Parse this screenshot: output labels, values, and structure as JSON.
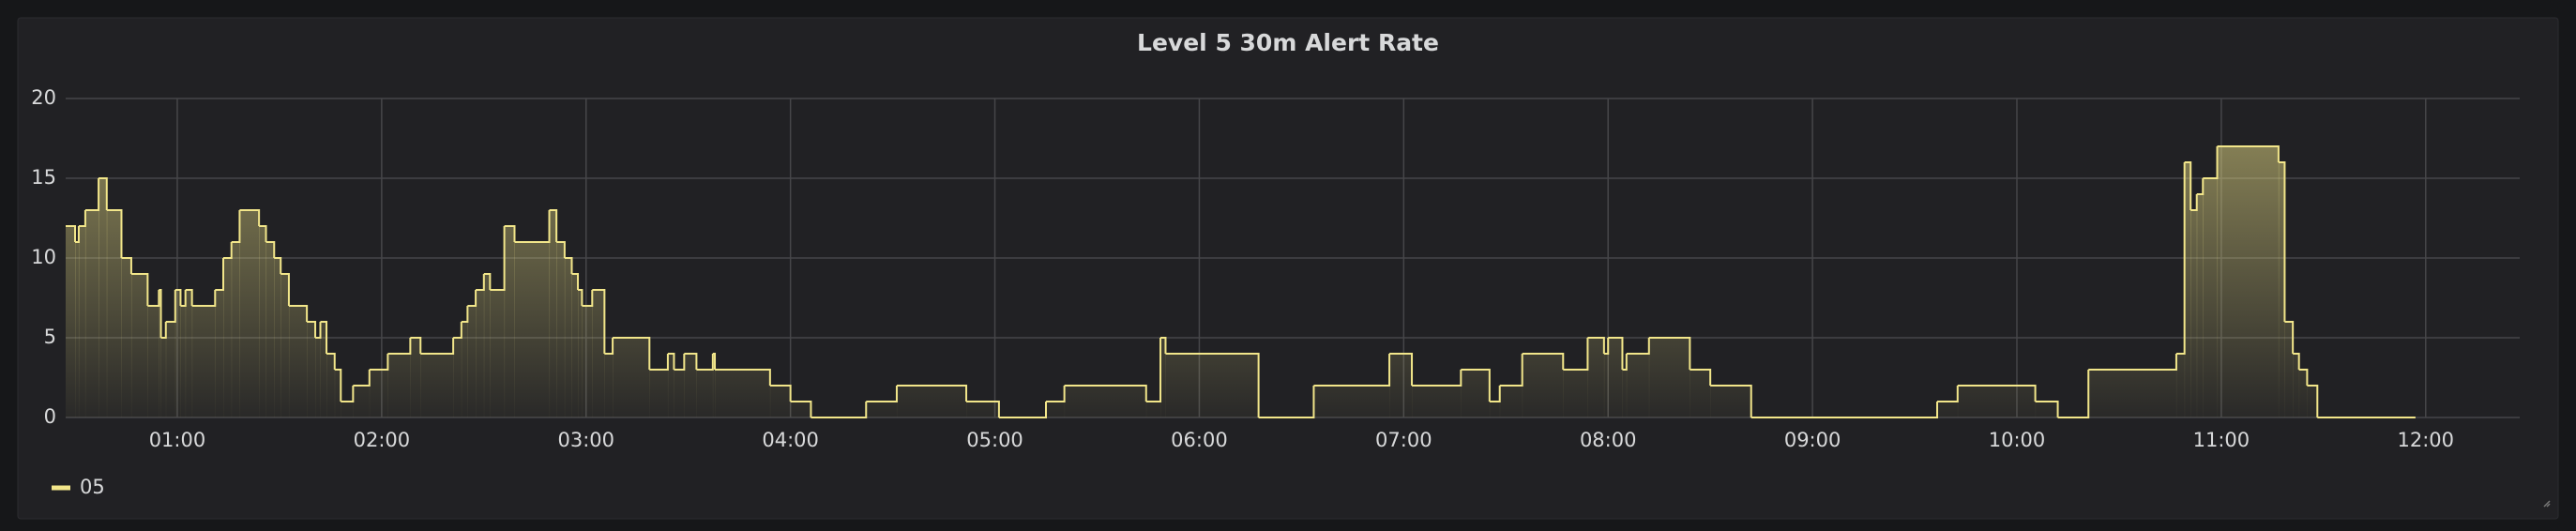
{
  "chart_data": {
    "type": "line",
    "title": "Level 5 30m Alert Rate",
    "step": true,
    "x": [
      0.454,
      0.5,
      0.518,
      0.55,
      0.615,
      0.655,
      0.727,
      0.775,
      0.855,
      0.91,
      0.92,
      0.944,
      0.99,
      1.016,
      1.04,
      1.072,
      1.185,
      1.225,
      1.265,
      1.305,
      1.4,
      1.434,
      1.474,
      1.506,
      1.546,
      1.634,
      1.675,
      1.7,
      1.73,
      1.77,
      1.8,
      1.86,
      1.94,
      2.03,
      2.14,
      2.19,
      2.35,
      2.39,
      2.42,
      2.46,
      2.5,
      2.53,
      2.6,
      2.65,
      2.82,
      2.855,
      2.895,
      2.93,
      2.96,
      2.98,
      3.03,
      3.09,
      3.13,
      3.31,
      3.4,
      3.43,
      3.48,
      3.54,
      3.62,
      3.63,
      3.9,
      4.0,
      4.1,
      4.37,
      4.52,
      4.86,
      5.02,
      5.25,
      5.34,
      5.74,
      5.81,
      5.835,
      6.29,
      6.56,
      6.93,
      7.04,
      7.28,
      7.42,
      7.47,
      7.58,
      7.78,
      7.9,
      7.98,
      8.0,
      8.07,
      8.09,
      8.2,
      8.4,
      8.5,
      8.7,
      9.61,
      9.71,
      10.09,
      10.2,
      10.35,
      10.78,
      10.82,
      10.85,
      10.88,
      10.91,
      10.98,
      11.28,
      11.31,
      11.35,
      11.38,
      11.42,
      11.47,
      11.95
    ],
    "series": [
      {
        "name": "05",
        "color": "#f2e68a",
        "values": [
          12,
          11,
          12,
          13,
          15,
          13,
          10,
          9,
          7,
          8,
          5,
          6,
          8,
          7,
          8,
          7,
          8,
          10,
          11,
          13,
          12,
          11,
          10,
          9,
          7,
          6,
          5,
          6,
          4,
          3,
          1,
          2,
          3,
          4,
          5,
          4,
          5,
          6,
          7,
          8,
          9,
          8,
          12,
          11,
          13,
          11,
          10,
          9,
          8,
          7,
          8,
          4,
          5,
          3,
          4,
          3,
          4,
          3,
          4,
          3,
          2,
          1,
          0,
          1,
          2,
          1,
          0,
          1,
          2,
          1,
          5,
          4,
          0,
          2,
          4,
          2,
          3,
          1,
          2,
          4,
          3,
          5,
          4,
          5,
          3,
          4,
          5,
          3,
          2,
          0,
          1,
          2,
          1,
          0,
          3,
          4,
          16,
          13,
          14,
          15,
          17,
          16,
          6,
          4,
          3,
          2,
          0,
          0
        ]
      }
    ],
    "xlim": [
      0.454,
      12.46
    ],
    "xticks": [
      {
        "value": 1,
        "label": "01:00"
      },
      {
        "value": 2,
        "label": "02:00"
      },
      {
        "value": 3,
        "label": "03:00"
      },
      {
        "value": 4,
        "label": "04:00"
      },
      {
        "value": 5,
        "label": "05:00"
      },
      {
        "value": 6,
        "label": "06:00"
      },
      {
        "value": 7,
        "label": "07:00"
      },
      {
        "value": 8,
        "label": "08:00"
      },
      {
        "value": 9,
        "label": "09:00"
      },
      {
        "value": 10,
        "label": "10:00"
      },
      {
        "value": 11,
        "label": "11:00"
      },
      {
        "value": 12,
        "label": "12:00"
      }
    ],
    "ylim": [
      0,
      20
    ],
    "yticks": [
      0,
      5,
      10,
      15,
      20
    ],
    "grid": true,
    "legend": "bottom-left"
  }
}
